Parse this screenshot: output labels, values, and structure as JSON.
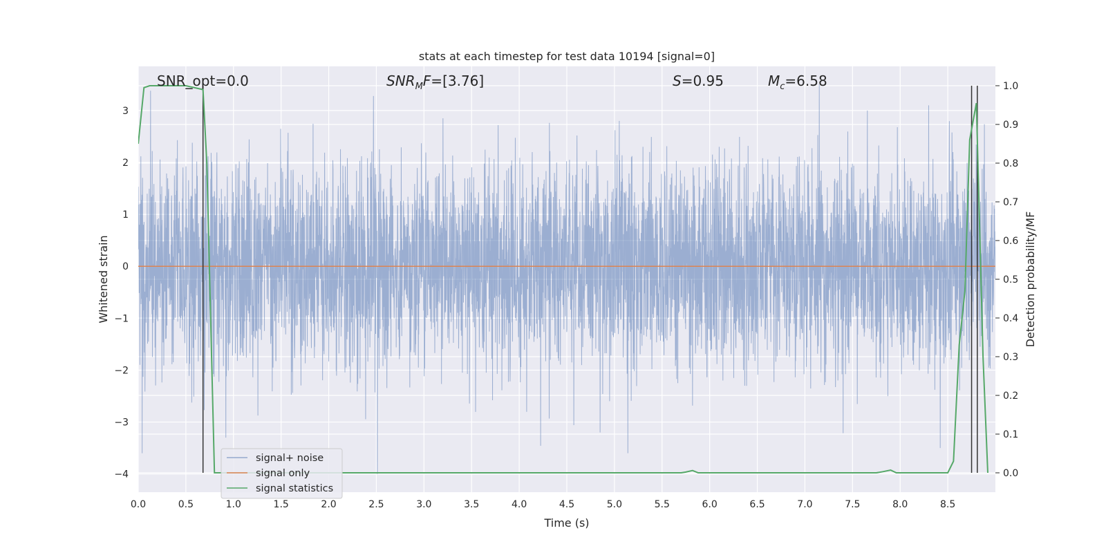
{
  "chart_data": {
    "type": "line",
    "title": "stats at each timestep for test data 10194 [signal=0]",
    "xlabel": "Time (s)",
    "ylabel": "Whitened strain",
    "y2label": "Detection probability/MF",
    "xlim": [
      0.0,
      9.0
    ],
    "ylim": [
      -4.35,
      3.85
    ],
    "y2lim": [
      -0.05,
      1.05
    ],
    "x_ticks": [
      0.0,
      0.5,
      1.0,
      1.5,
      2.0,
      2.5,
      3.0,
      3.5,
      4.0,
      4.5,
      5.0,
      5.5,
      6.0,
      6.5,
      7.0,
      7.5,
      8.0,
      8.5
    ],
    "x_tick_labels": [
      "0.0",
      "0.5",
      "1.0",
      "1.5",
      "2.0",
      "2.5",
      "3.0",
      "3.5",
      "4.0",
      "4.5",
      "5.0",
      "5.5",
      "6.0",
      "6.5",
      "7.0",
      "7.5",
      "8.0",
      "8.5"
    ],
    "y_ticks": [
      3,
      2,
      1,
      0,
      -1,
      -2,
      -3,
      -4
    ],
    "y_tick_labels": [
      "3",
      "2",
      "1",
      "0",
      "−1",
      "−2",
      "−3",
      "−4"
    ],
    "y2_ticks": [
      1.0,
      0.9,
      0.8,
      0.7,
      0.6,
      0.5,
      0.4,
      0.3,
      0.2,
      0.1,
      0.0
    ],
    "y2_tick_labels": [
      "1.0",
      "0.9",
      "0.8",
      "0.7",
      "0.6",
      "0.5",
      "0.4",
      "0.3",
      "0.2",
      "0.1",
      "0.0"
    ],
    "grid": true,
    "legend_position": "lower-left",
    "colors": {
      "signal_noise": "#4c72b0",
      "signal_only": "#dd8452",
      "signal_statistics": "#55a868",
      "markers": "#333333",
      "background": "#eaeaf2",
      "grid": "#ffffff"
    },
    "annotations": {
      "snr_opt": "SNR_opt=0.0",
      "snr_mf": "[3.76]",
      "s": "=0.95",
      "mc": "=6.58"
    },
    "series": [
      {
        "name": "signal+ noise",
        "axis": "left",
        "description": "whitened strain noise, approx. ±1.2 dense band with peaks to ±3.5",
        "notable_peaks": [
          {
            "x": 0.13,
            "y": 3.38
          },
          {
            "x": 2.47,
            "y": 3.28
          },
          {
            "x": 7.15,
            "y": 3.5
          },
          {
            "x": 8.3,
            "y": 3.1
          },
          {
            "x": 2.51,
            "y": -4.0
          },
          {
            "x": 5.14,
            "y": -3.6
          },
          {
            "x": 8.42,
            "y": -3.5
          },
          {
            "x": 0.92,
            "y": -3.3
          },
          {
            "x": 4.85,
            "y": -3.2
          }
        ]
      },
      {
        "name": "signal only",
        "axis": "left",
        "x": [
          0.0,
          9.0
        ],
        "y": [
          0.0,
          0.0
        ]
      },
      {
        "name": "signal statistics",
        "axis": "right",
        "x": [
          0.0,
          0.06,
          0.12,
          0.2,
          0.5,
          0.68,
          0.72,
          0.8,
          0.84,
          5.7,
          5.75,
          5.82,
          5.88,
          7.75,
          7.82,
          7.9,
          7.96,
          8.5,
          8.56,
          8.62,
          8.68,
          8.73,
          8.8,
          8.87,
          8.92
        ],
        "y": [
          0.85,
          0.995,
          1.0,
          1.0,
          1.0,
          0.99,
          0.8,
          0.0,
          0.0,
          0.0,
          0.002,
          0.006,
          0.0,
          0.0,
          0.003,
          0.007,
          0.0,
          0.0,
          0.03,
          0.33,
          0.47,
          0.86,
          0.955,
          0.3,
          0.0
        ]
      }
    ],
    "vertical_markers_x": [
      0.68,
      8.75,
      8.81
    ]
  }
}
